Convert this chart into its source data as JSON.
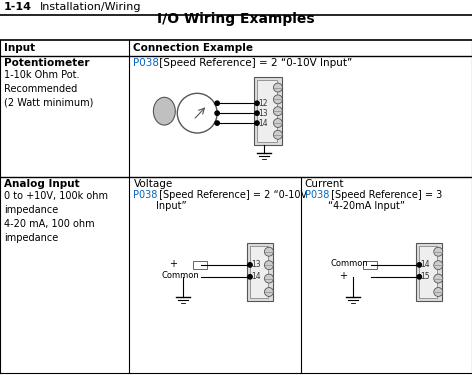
{
  "bg_color": "#ffffff",
  "header_text": "1-14",
  "header_sub": "Installation/Wiring",
  "title": "I/O Wiring Examples",
  "col1_header": "Input",
  "col2_header": "Connection Example",
  "row1_label_bold": "Potentiometer",
  "row1_label_normal": "1-10k Ohm Pot.\nRecommended\n(2 Watt minimum)",
  "row1_link": "P038",
  "row1_desc": " [Speed Reference] = 2 “0-10V Input”",
  "row2_label_bold": "Analog Input",
  "row2_label_normal": "0 to +10V, 100k ohm\nimpedance\n4-20 mA, 100 ohm\nimpedance",
  "row2_volt_label": "Voltage",
  "row2_volt_link": "P038",
  "row2_volt_desc": " [Speed Reference] = 2 “0-10V\nInput”",
  "row2_curr_label": "Current",
  "row2_curr_link": "P038",
  "row2_curr_desc": " [Speed Reference] = 3\n“4-20mA Input”",
  "link_color": "#0563C1",
  "line_color": "#000000",
  "terminal_color": "#555555",
  "screw_color": "#888888"
}
